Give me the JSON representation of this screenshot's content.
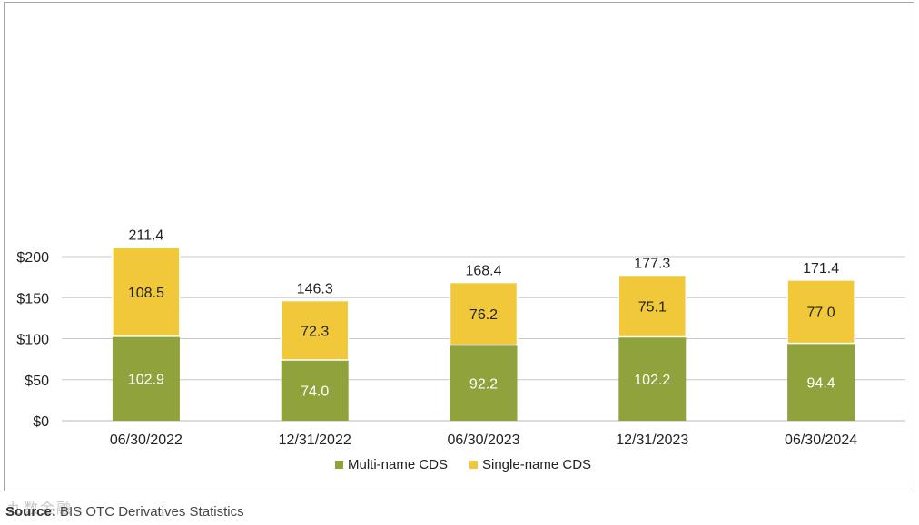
{
  "chart_data": {
    "type": "bar",
    "stacked": true,
    "categories": [
      "06/30/2022",
      "12/31/2022",
      "06/30/2023",
      "12/31/2023",
      "06/30/2024"
    ],
    "series": [
      {
        "name": "Multi-name CDS",
        "values": [
          102.9,
          74.0,
          92.2,
          102.2,
          94.4
        ],
        "labels": [
          "102.9",
          "74.0",
          "92.2",
          "102.2",
          "94.4"
        ]
      },
      {
        "name": "Single-name CDS",
        "values": [
          108.5,
          72.3,
          76.2,
          75.1,
          77.0
        ],
        "labels": [
          "108.5",
          "72.3",
          "76.2",
          "75.1",
          "77.0"
        ]
      }
    ],
    "totals": [
      "211.4",
      "146.3",
      "168.4",
      "177.3",
      "171.4"
    ],
    "yticks": [
      "$0",
      "$50",
      "$100",
      "$150",
      "$200"
    ],
    "ytick_values": [
      0,
      50,
      100,
      150,
      200
    ],
    "ylim": [
      0,
      220
    ],
    "title": "",
    "xlabel": "",
    "ylabel": "",
    "grid": true,
    "legend": "bottom-center"
  },
  "colors": {
    "multi": "#8fa23b",
    "single": "#f0c83a",
    "grid": "#c8c8c8"
  },
  "source": {
    "label": "Source:",
    "text": " BIS OTC Derivatives Statistics"
  },
  "watermark": "九数金融"
}
